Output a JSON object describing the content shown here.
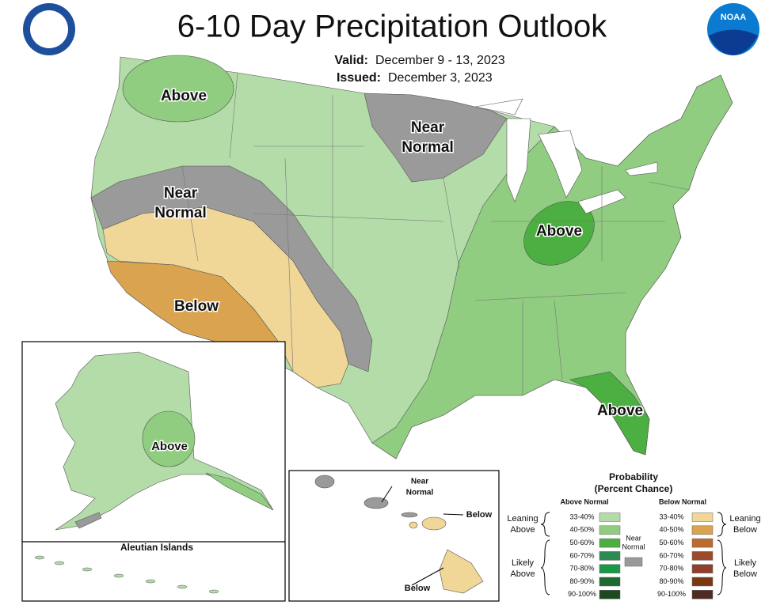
{
  "header": {
    "title": "6-10 Day Precipitation Outlook",
    "valid_label": "Valid:",
    "valid": "December 9 - 13, 2023",
    "issued_label": "Issued:",
    "issued": "December 3, 2023",
    "noaa_logo": "NOAA"
  },
  "map_labels": {
    "northwest": "Above",
    "upper_midwest": [
      "Near",
      "Normal"
    ],
    "great_basin": [
      "Near",
      "Normal"
    ],
    "ohio_valley": "Above",
    "southwest": "Below",
    "florida": "Above"
  },
  "insets": {
    "alaska": "Above",
    "aleutian_title": "Aleutian Islands",
    "hawaii_near": [
      "Near",
      "Normal"
    ],
    "hawaii_below_1": "Below",
    "hawaii_below_2": "Below"
  },
  "legend": {
    "title": "Probability",
    "subtitle": "(Percent Chance)",
    "above_header": "Above Normal",
    "below_header": "Below Normal",
    "above_items": [
      {
        "label": "33-40%",
        "color": "#b3dca8"
      },
      {
        "label": "40-50%",
        "color": "#90cd80"
      },
      {
        "label": "50-60%",
        "color": "#4caf41"
      },
      {
        "label": "60-70%",
        "color": "#2e8a53"
      },
      {
        "label": "70-80%",
        "color": "#169a48"
      },
      {
        "label": "80-90%",
        "color": "#1f6a2f"
      },
      {
        "label": "90-100%",
        "color": "#1c4a1e"
      }
    ],
    "below_items": [
      {
        "label": "33-40%",
        "color": "#f0d697"
      },
      {
        "label": "40-50%",
        "color": "#d9a34f"
      },
      {
        "label": "50-60%",
        "color": "#bb6b2e"
      },
      {
        "label": "60-70%",
        "color": "#9c4b2a"
      },
      {
        "label": "70-80%",
        "color": "#8f3f2b"
      },
      {
        "label": "80-90%",
        "color": "#7a3914"
      },
      {
        "label": "90-100%",
        "color": "#4f2c23"
      }
    ],
    "near": {
      "label": [
        "Near",
        "Normal"
      ],
      "color": "#9a9a9a"
    },
    "leaning_above": [
      "Leaning",
      "Above"
    ],
    "likely_above": [
      "Likely",
      "Above"
    ],
    "leaning_below": [
      "Leaning",
      "Below"
    ],
    "likely_below": [
      "Likely",
      "Below"
    ]
  }
}
